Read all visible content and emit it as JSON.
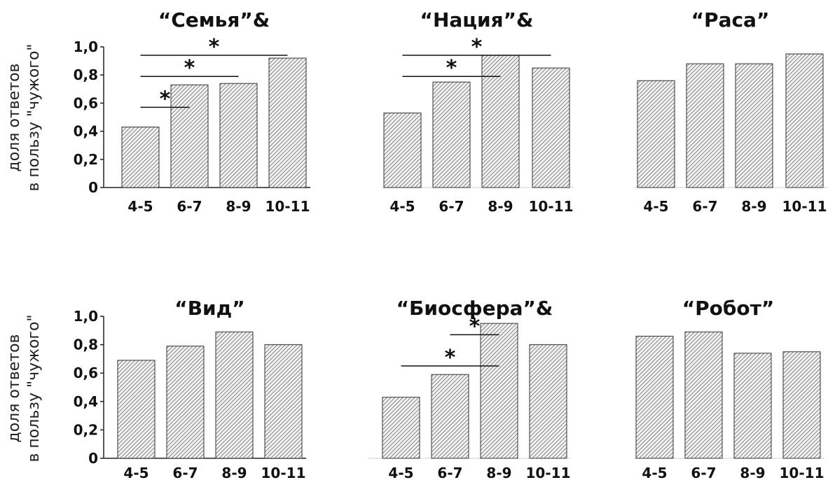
{
  "figure": {
    "ylabel_line1": "доля ответов",
    "ylabel_line2": "в пользу \"чужого\""
  },
  "chart_data": [
    {
      "type": "bar",
      "title": "“Семья”&",
      "categories": [
        "4-5",
        "6-7",
        "8-9",
        "10-11"
      ],
      "values": [
        0.43,
        0.73,
        0.74,
        0.92
      ],
      "ylim": [
        0,
        1.0
      ],
      "yticks": [
        "0",
        "0,2",
        "0,4",
        "0,6",
        "0,8",
        "1,0"
      ],
      "show_axis": true,
      "significance": [
        {
          "from": "4-5",
          "to": "6-7",
          "level": 0.57,
          "label": "*"
        },
        {
          "from": "4-5",
          "to": "8-9",
          "level": 0.79,
          "label": "*"
        },
        {
          "from": "4-5",
          "to": "10-11",
          "level": 0.94,
          "label": "*"
        }
      ]
    },
    {
      "type": "bar",
      "title": "“Нация”&",
      "categories": [
        "4-5",
        "6-7",
        "8-9",
        "10-11"
      ],
      "values": [
        0.53,
        0.75,
        0.94,
        0.85
      ],
      "ylim": [
        0,
        1.0
      ],
      "show_axis": false,
      "significance": [
        {
          "from": "4-5",
          "to": "8-9",
          "level": 0.79,
          "label": "*"
        },
        {
          "from": "4-5",
          "to": "10-11",
          "level": 0.94,
          "label": "*"
        }
      ]
    },
    {
      "type": "bar",
      "title": "“Раса”",
      "categories": [
        "4-5",
        "6-7",
        "8-9",
        "10-11"
      ],
      "values": [
        0.76,
        0.88,
        0.88,
        0.95
      ],
      "ylim": [
        0,
        1.0
      ],
      "show_axis": false,
      "significance": []
    },
    {
      "type": "bar",
      "title": "“Вид”",
      "categories": [
        "4-5",
        "6-7",
        "8-9",
        "10-11"
      ],
      "values": [
        0.69,
        0.79,
        0.89,
        0.8
      ],
      "ylim": [
        0,
        1.0
      ],
      "yticks": [
        "0",
        "0,2",
        "0,4",
        "0,6",
        "0,8",
        "1,0"
      ],
      "show_axis": true,
      "significance": []
    },
    {
      "type": "bar",
      "title": "“Биосфера”&",
      "categories": [
        "4-5",
        "6-7",
        "8-9",
        "10-11"
      ],
      "values": [
        0.43,
        0.59,
        0.95,
        0.8
      ],
      "ylim": [
        0,
        1.0
      ],
      "show_axis": false,
      "significance": [
        {
          "from": "4-5",
          "to": "8-9",
          "level": 0.65,
          "label": "*"
        },
        {
          "from": "6-7",
          "to": "8-9",
          "level": 0.87,
          "label": "*"
        }
      ]
    },
    {
      "type": "bar",
      "title": "“Робот”",
      "categories": [
        "4-5",
        "6-7",
        "8-9",
        "10-11"
      ],
      "values": [
        0.86,
        0.89,
        0.74,
        0.75
      ],
      "ylim": [
        0,
        1.0
      ],
      "show_axis": false,
      "significance": []
    }
  ]
}
